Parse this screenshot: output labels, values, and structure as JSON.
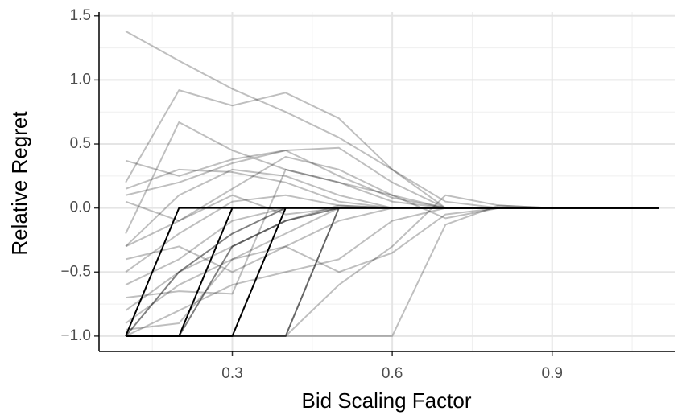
{
  "chart_data": {
    "type": "line",
    "x_label": "Bid Scaling Factor",
    "y_label": "Relative Regret",
    "x": [
      0.1,
      0.2,
      0.3,
      0.4,
      0.5,
      0.6,
      0.7,
      0.8,
      0.9,
      1.0,
      1.1
    ],
    "xlim": [
      0.05,
      1.13
    ],
    "ylim": [
      -1.12,
      1.53
    ],
    "xticks": [
      0.3,
      0.6,
      0.9
    ],
    "yticks": [
      {
        "value": -1.0,
        "label": "−1.0"
      },
      {
        "value": -0.5,
        "label": "−0.5"
      },
      {
        "value": 0,
        "label": "0.0"
      },
      0.5,
      {
        "value": 1.0,
        "label": "1.0"
      },
      1.5
    ],
    "x_minor_grid": [
      0.15,
      0.45,
      0.75,
      1.05
    ],
    "y_minor_grid": [
      -0.75,
      -0.25,
      0.25,
      0.75,
      1.25
    ],
    "grid": true,
    "series": [
      {
        "color": "#000000",
        "opacity": 0.25,
        "values": [
          1.38,
          1.15,
          0.93,
          0.75,
          0.55,
          0.3,
          0.05,
          0,
          0,
          0,
          0
        ]
      },
      {
        "color": "#000000",
        "opacity": 0.25,
        "values": [
          0.2,
          0.92,
          0.8,
          0.9,
          0.7,
          0.3,
          0,
          0,
          0,
          0,
          0
        ]
      },
      {
        "color": "#000000",
        "opacity": 0.25,
        "values": [
          -0.2,
          0.67,
          0.45,
          0.3,
          0.2,
          0.05,
          0,
          0,
          0,
          0,
          0
        ]
      },
      {
        "color": "#000000",
        "opacity": 0.25,
        "values": [
          0.37,
          0.25,
          0.38,
          0.45,
          0.47,
          0.2,
          0,
          0,
          0,
          0,
          0
        ]
      },
      {
        "color": "#000000",
        "opacity": 0.25,
        "values": [
          0.15,
          0.3,
          0.28,
          0.2,
          0.05,
          0,
          0,
          0,
          0,
          0,
          0
        ]
      },
      {
        "color": "#000000",
        "opacity": 0.25,
        "values": [
          -0.3,
          0.1,
          0.3,
          0.25,
          0.1,
          0,
          0,
          0,
          0,
          0,
          0
        ]
      },
      {
        "color": "#000000",
        "opacity": 0.25,
        "values": [
          -0.5,
          -0.2,
          0.05,
          0.1,
          0.02,
          0,
          0,
          0,
          0,
          0,
          0
        ]
      },
      {
        "color": "#000000",
        "opacity": 0.25,
        "values": [
          -0.6,
          -0.4,
          -0.1,
          0,
          0,
          0,
          0,
          0,
          0,
          0,
          0
        ]
      },
      {
        "color": "#000000",
        "opacity": 0.25,
        "values": [
          -0.8,
          -0.5,
          -0.3,
          -0.1,
          0.02,
          0,
          0,
          0,
          0,
          0,
          0
        ]
      },
      {
        "color": "#000000",
        "opacity": 0.25,
        "values": [
          -1,
          -1,
          -1,
          -1,
          -0.6,
          -0.3,
          0.1,
          0.02,
          0,
          0,
          0
        ]
      },
      {
        "color": "#000000",
        "opacity": 0.25,
        "values": [
          -1,
          -1,
          -1,
          -1,
          -1,
          -1,
          -0.13,
          0.02,
          0,
          0,
          0
        ]
      },
      {
        "color": "#000000",
        "opacity": 0.25,
        "values": [
          -0.4,
          -0.3,
          -0.5,
          -0.3,
          -0.1,
          0,
          0,
          0,
          0,
          0,
          0
        ]
      },
      {
        "color": "#000000",
        "opacity": 0.25,
        "values": [
          -0.9,
          -0.6,
          -0.4,
          -0.2,
          0,
          0,
          0,
          0,
          0,
          0,
          0
        ]
      },
      {
        "color": "#000000",
        "opacity": 0.25,
        "values": [
          0.05,
          -0.1,
          0.1,
          -0.05,
          0,
          0,
          0,
          0,
          0,
          0,
          0
        ]
      },
      {
        "color": "#000000",
        "opacity": 0.25,
        "values": [
          -0.7,
          -0.65,
          -0.67,
          0.3,
          0.2,
          0.1,
          0,
          0,
          0,
          0,
          0
        ]
      },
      {
        "color": "#000000",
        "opacity": 0.25,
        "values": [
          -1,
          -0.8,
          -0.6,
          -0.5,
          -0.4,
          -0.1,
          0,
          0,
          0,
          0,
          0
        ]
      },
      {
        "color": "#000000",
        "opacity": 0.25,
        "values": [
          -0.95,
          -0.9,
          -0.4,
          -0.3,
          -0.5,
          -0.35,
          -0.05,
          0,
          0,
          0,
          0
        ]
      },
      {
        "color": "#000000",
        "opacity": 0.25,
        "values": [
          0.1,
          0.2,
          0.35,
          0.45,
          0.25,
          0.08,
          0,
          0,
          0,
          0,
          0
        ]
      },
      {
        "color": "#000000",
        "opacity": 0.25,
        "values": [
          -0.3,
          -0.1,
          0.15,
          0.4,
          0.3,
          0.1,
          -0.08,
          0,
          0,
          0,
          0
        ]
      },
      {
        "color": "#000000",
        "opacity": 0.5,
        "values": [
          -1,
          -0.5,
          -0.2,
          0,
          0,
          0,
          0,
          0,
          0,
          0,
          0
        ]
      },
      {
        "color": "#000000",
        "opacity": 0.5,
        "values": [
          -1,
          -1,
          -0.3,
          -0.1,
          0,
          0,
          0,
          0,
          0,
          0,
          0
        ]
      },
      {
        "color": "#000000",
        "opacity": 1,
        "values": [
          -1,
          0,
          0,
          0,
          0,
          0,
          0,
          0,
          0,
          0,
          0
        ]
      },
      {
        "color": "#000000",
        "opacity": 1,
        "values": [
          -1,
          -1,
          0,
          0,
          0,
          0,
          0,
          0,
          0,
          0,
          0
        ]
      },
      {
        "color": "#000000",
        "opacity": 1,
        "values": [
          -1,
          -1,
          -1,
          0,
          0,
          0,
          0,
          0,
          0,
          0,
          0
        ]
      },
      {
        "color": "#000000",
        "opacity": 0.6,
        "values": [
          -1,
          -1,
          -1,
          -1,
          0,
          0,
          0,
          0,
          0,
          0,
          0
        ]
      }
    ]
  }
}
